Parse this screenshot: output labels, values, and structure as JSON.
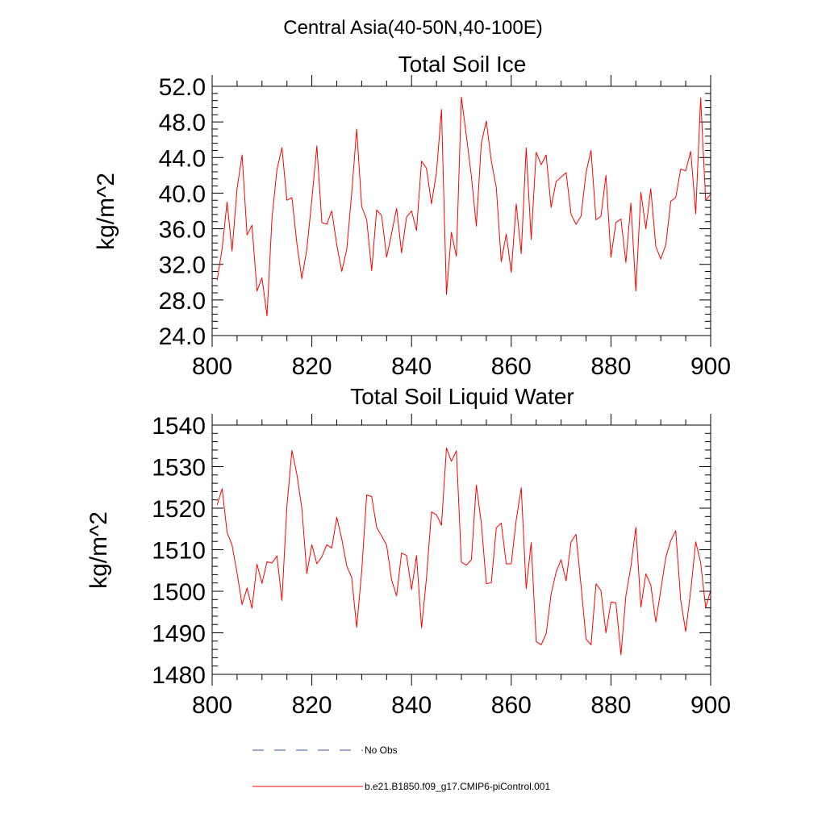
{
  "page_title": "Central Asia(40-50N,40-100E)",
  "chart_data": [
    {
      "type": "line",
      "title": "Total Soil Ice",
      "xlabel": "",
      "ylabel": "kg/m^2",
      "xlim": [
        800,
        900
      ],
      "ylim": [
        24,
        52
      ],
      "xticks": [
        800,
        820,
        840,
        860,
        880,
        900
      ],
      "xtick_labels": [
        "800",
        "820",
        "840",
        "860",
        "880",
        "900"
      ],
      "yticks": [
        24,
        28,
        32,
        36,
        40,
        44,
        48,
        52
      ],
      "ytick_labels": [
        "24.0",
        "28.0",
        "32.0",
        "36.0",
        "40.0",
        "44.0",
        "48.0",
        "52.0"
      ],
      "series": [
        {
          "name": "b.e21.B1850.f09_g17.CMIP6-piControl.001",
          "color": "#ff0000",
          "x": [
            801,
            802,
            803,
            804,
            805,
            806,
            807,
            808,
            809,
            810,
            811,
            812,
            813,
            814,
            815,
            816,
            817,
            818,
            819,
            820,
            821,
            822,
            823,
            824,
            825,
            826,
            827,
            828,
            829,
            830,
            831,
            832,
            833,
            834,
            835,
            836,
            837,
            838,
            839,
            840,
            841,
            842,
            843,
            844,
            845,
            846,
            847,
            848,
            849,
            850,
            851,
            852,
            853,
            854,
            855,
            856,
            857,
            858,
            859,
            860,
            861,
            862,
            863,
            864,
            865,
            866,
            867,
            868,
            869,
            870,
            871,
            872,
            873,
            874,
            875,
            876,
            877,
            878,
            879,
            880,
            881,
            882,
            883,
            884,
            885,
            886,
            887,
            888,
            889,
            890,
            891,
            892,
            893,
            894,
            895,
            896,
            897,
            898,
            899,
            900
          ],
          "values": [
            30.2,
            33.8,
            39.0,
            33.5,
            40.5,
            44.3,
            35.3,
            36.4,
            29.0,
            30.5,
            26.2,
            37.2,
            42.6,
            45.1,
            39.2,
            39.5,
            34.3,
            30.4,
            33.7,
            39.3,
            45.3,
            36.7,
            36.5,
            38.0,
            34.2,
            31.2,
            33.7,
            40.0,
            47.2,
            38.5,
            37.0,
            31.3,
            38.1,
            37.5,
            32.8,
            35.5,
            38.3,
            33.3,
            37.3,
            38.0,
            35.8,
            43.6,
            42.8,
            38.8,
            42.3,
            49.4,
            28.6,
            35.6,
            32.9,
            50.8,
            46.4,
            41.9,
            36.3,
            45.6,
            48.1,
            43.6,
            40.6,
            32.3,
            35.4,
            31.1,
            38.8,
            33.2,
            45.1,
            34.8,
            44.6,
            43.2,
            44.3,
            38.4,
            41.3,
            41.8,
            42.3,
            37.6,
            36.5,
            37.4,
            42.3,
            44.8,
            37.0,
            37.4,
            42.0,
            32.8,
            36.7,
            37.1,
            32.2,
            38.9,
            29.0,
            40.1,
            36.0,
            40.5,
            34.0,
            32.6,
            34.2,
            39.1,
            39.5,
            42.7,
            42.5,
            44.7,
            37.7,
            50.7,
            39.2,
            39.9
          ]
        }
      ]
    },
    {
      "type": "line",
      "title": "Total Soil Liquid Water",
      "xlabel": "",
      "ylabel": "kg/m^2",
      "xlim": [
        800,
        900
      ],
      "ylim": [
        1480,
        1540
      ],
      "xticks": [
        800,
        820,
        840,
        860,
        880,
        900
      ],
      "xtick_labels": [
        "800",
        "820",
        "840",
        "860",
        "880",
        "900"
      ],
      "yticks": [
        1480,
        1490,
        1500,
        1510,
        1520,
        1530,
        1540
      ],
      "ytick_labels": [
        "1480",
        "1490",
        "1500",
        "1510",
        "1520",
        "1530",
        "1540"
      ],
      "series": [
        {
          "name": "b.e21.B1850.f09_g17.CMIP6-piControl.001",
          "color": "#ff0000",
          "x": [
            801,
            802,
            803,
            804,
            805,
            806,
            807,
            808,
            809,
            810,
            811,
            812,
            813,
            814,
            815,
            816,
            817,
            818,
            819,
            820,
            821,
            822,
            823,
            824,
            825,
            826,
            827,
            828,
            829,
            830,
            831,
            832,
            833,
            834,
            835,
            836,
            837,
            838,
            839,
            840,
            841,
            842,
            843,
            844,
            845,
            846,
            847,
            848,
            849,
            850,
            851,
            852,
            853,
            854,
            855,
            856,
            857,
            858,
            859,
            860,
            861,
            862,
            863,
            864,
            865,
            866,
            867,
            868,
            869,
            870,
            871,
            872,
            873,
            874,
            875,
            876,
            877,
            878,
            879,
            880,
            881,
            882,
            883,
            884,
            885,
            886,
            887,
            888,
            889,
            890,
            891,
            892,
            893,
            894,
            895,
            896,
            897,
            898,
            899,
            900
          ],
          "values": [
            1520.8,
            1524.7,
            1514.2,
            1511.1,
            1504.4,
            1496.8,
            1500.8,
            1495.9,
            1506.5,
            1501.9,
            1507.1,
            1506.8,
            1508.5,
            1497.8,
            1520.5,
            1533.9,
            1528.1,
            1520.0,
            1504.3,
            1511.2,
            1506.6,
            1508.3,
            1511.2,
            1510.4,
            1517.8,
            1512.6,
            1506.1,
            1503.3,
            1491.3,
            1504.8,
            1523.2,
            1522.8,
            1515.4,
            1513.3,
            1511.1,
            1502.7,
            1498.9,
            1509.2,
            1508.6,
            1500.4,
            1508.6,
            1491.2,
            1503.2,
            1519.1,
            1518.4,
            1515.9,
            1534.5,
            1531.3,
            1533.8,
            1507.0,
            1506.3,
            1507.6,
            1525.6,
            1516.4,
            1501.8,
            1502.1,
            1515.3,
            1516.4,
            1506.6,
            1506.6,
            1517.2,
            1524.9,
            1500.6,
            1511.7,
            1487.9,
            1487.1,
            1489.8,
            1499.3,
            1504.6,
            1507.6,
            1502.5,
            1511.9,
            1513.7,
            1501.4,
            1488.5,
            1487.1,
            1501.8,
            1500.2,
            1490.0,
            1497.4,
            1497.2,
            1484.7,
            1498.9,
            1505.9,
            1515.4,
            1496.2,
            1504.2,
            1501.5,
            1492.6,
            1500.3,
            1508.2,
            1512.2,
            1514.6,
            1497.8,
            1490.3,
            1500.1,
            1511.9,
            1506.9,
            1496.1,
            1500.2
          ]
        }
      ]
    }
  ],
  "legend": {
    "placement": "bottom",
    "entries": [
      {
        "label": "No Obs",
        "color": "#3b4fa8",
        "style": "dashed"
      },
      {
        "label": "b.e21.B1850.f09_g17.CMIP6-piControl.001",
        "color": "#ff0000",
        "style": "solid"
      }
    ]
  }
}
